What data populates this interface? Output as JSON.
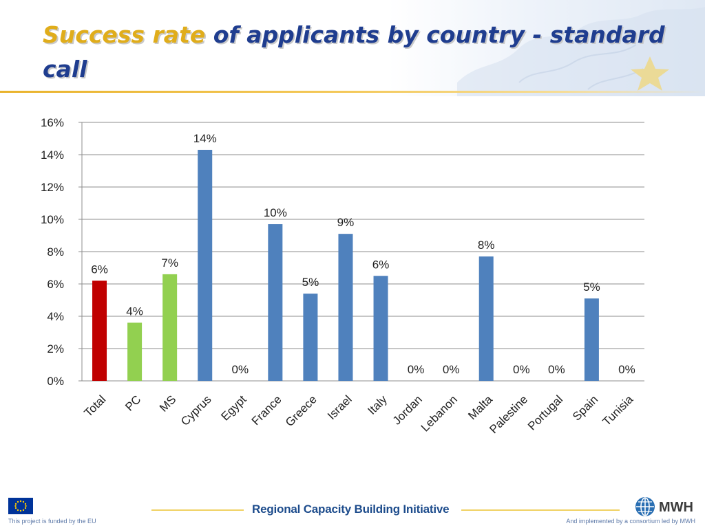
{
  "slide": {
    "title_highlight": "Success rate",
    "title_rest": " of applicants by country - standard call"
  },
  "footer": {
    "center": "Regional Capacity Building Initiative",
    "left": "This project is funded by the EU",
    "right": "And implemented by a consortium led by MWH",
    "logo_text": "MWH"
  },
  "colors": {
    "title_highlight": "#e0ad1b",
    "title_main": "#1f3d8f",
    "total_bar": "#c00000",
    "group_bar": "#92d050",
    "country_bar": "#4f81bd",
    "gridline": "#8c8c8c"
  },
  "chart_data": {
    "type": "bar",
    "title": "",
    "xlabel": "",
    "ylabel": "",
    "ylim": [
      0,
      0.16
    ],
    "yticks": [
      "0%",
      "2%",
      "4%",
      "6%",
      "8%",
      "10%",
      "12%",
      "14%",
      "16%"
    ],
    "grid": true,
    "legend": "none",
    "categories": [
      "Total",
      "PC",
      "MS",
      "Cyprus",
      "Egypt",
      "France",
      "Greece",
      "Israel",
      "Italy",
      "Jordan",
      "Lebanon",
      "Malta",
      "Palestine",
      "Portugal",
      "Spain",
      "Tunisia"
    ],
    "values": [
      0.062,
      0.036,
      0.066,
      0.143,
      0,
      0.097,
      0.054,
      0.091,
      0.065,
      0,
      0,
      0.077,
      0,
      0,
      0.051,
      0
    ],
    "data_labels": [
      "6%",
      "4%",
      "7%",
      "14%",
      "0%",
      "10%",
      "5%",
      "9%",
      "6%",
      "0%",
      "0%",
      "8%",
      "0%",
      "0%",
      "5%",
      "0%"
    ],
    "bar_colors": [
      "#c00000",
      "#92d050",
      "#92d050",
      "#4f81bd",
      "#4f81bd",
      "#4f81bd",
      "#4f81bd",
      "#4f81bd",
      "#4f81bd",
      "#4f81bd",
      "#4f81bd",
      "#4f81bd",
      "#4f81bd",
      "#4f81bd",
      "#4f81bd",
      "#4f81bd"
    ]
  }
}
